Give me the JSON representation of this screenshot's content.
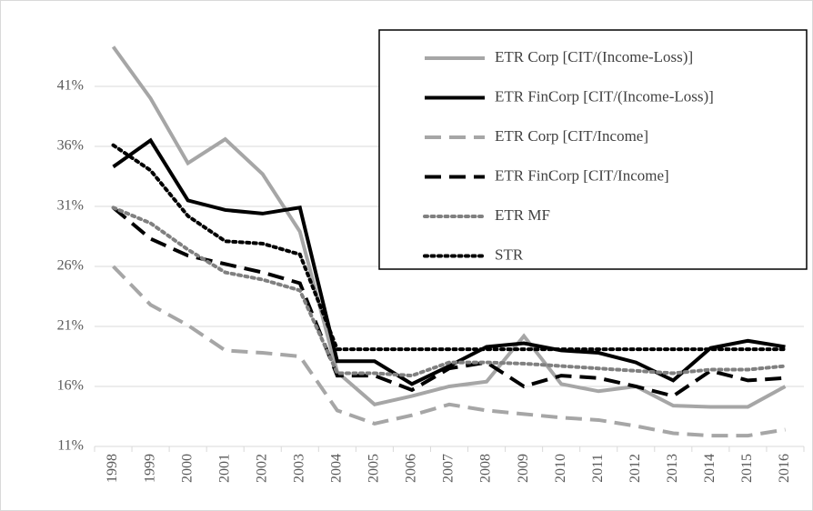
{
  "chart_data": {
    "type": "line",
    "x": [
      "1998",
      "1999",
      "2000",
      "2001",
      "2002",
      "2003",
      "2004",
      "2005",
      "2006",
      "2007",
      "2008",
      "2009",
      "2010",
      "2011",
      "2012",
      "2013",
      "2014",
      "2015",
      "2016"
    ],
    "ylim": [
      11,
      46
    ],
    "yticks": [
      {
        "value": 11,
        "label": "11%"
      },
      {
        "value": 16,
        "label": "16%"
      },
      {
        "value": 21,
        "label": "21%"
      },
      {
        "value": 26,
        "label": "26%"
      },
      {
        "value": 31,
        "label": "31%"
      },
      {
        "value": 36,
        "label": "36%"
      },
      {
        "value": 41,
        "label": "41%"
      }
    ],
    "grid": true,
    "legend": "upper right",
    "series": [
      {
        "name": "ETR Corp [CIT/(Income-Loss)]",
        "color": "#a6a6a6",
        "style": "solid",
        "values": [
          44.3,
          40.0,
          34.6,
          36.6,
          33.7,
          28.9,
          17.2,
          14.5,
          15.2,
          16.0,
          16.4,
          20.2,
          16.2,
          15.6,
          16.0,
          14.4,
          14.3,
          14.3,
          16.0
        ]
      },
      {
        "name": "ETR FinCorp [CIT/(Income-Loss)]",
        "color": "#000000",
        "style": "solid",
        "values": [
          34.3,
          36.5,
          31.5,
          30.7,
          30.4,
          30.9,
          18.1,
          18.1,
          16.2,
          17.7,
          19.3,
          19.6,
          19.0,
          18.8,
          18.0,
          16.5,
          19.2,
          19.8,
          19.3
        ]
      },
      {
        "name": "ETR Corp [CIT/Income]",
        "color": "#a6a6a6",
        "style": "dashed",
        "values": [
          26.0,
          22.8,
          21.1,
          19.0,
          18.8,
          18.5,
          14.0,
          12.9,
          13.6,
          14.5,
          14.0,
          13.7,
          13.4,
          13.2,
          12.7,
          12.1,
          11.9,
          11.9,
          12.4
        ]
      },
      {
        "name": "ETR FinCorp [CIT/Income]",
        "color": "#000000",
        "style": "dashed",
        "values": [
          30.9,
          28.3,
          26.9,
          26.2,
          25.5,
          24.6,
          16.9,
          16.9,
          15.7,
          17.5,
          18.0,
          16.0,
          16.9,
          16.7,
          16.0,
          15.2,
          17.3,
          16.5,
          16.7
        ]
      },
      {
        "name": "ETR MF",
        "color": "#808080",
        "style": "dotted",
        "values": [
          30.9,
          29.6,
          27.4,
          25.5,
          24.9,
          24.0,
          17.1,
          17.1,
          16.9,
          18.0,
          18.0,
          17.9,
          17.7,
          17.5,
          17.3,
          17.1,
          17.4,
          17.4,
          17.7
        ]
      },
      {
        "name": "STR",
        "color": "#000000",
        "style": "dotted",
        "values": [
          36.1,
          34.0,
          30.2,
          28.1,
          27.9,
          27.0,
          19.1,
          19.1,
          19.1,
          19.1,
          19.1,
          19.1,
          19.1,
          19.1,
          19.1,
          19.1,
          19.1,
          19.1,
          19.1
        ]
      }
    ]
  }
}
